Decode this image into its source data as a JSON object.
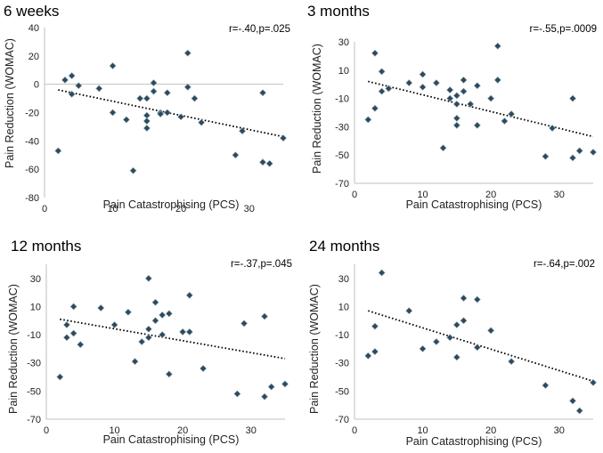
{
  "chart_data": [
    {
      "type": "scatter",
      "title": "6 weeks",
      "stat": "r=-.40,p=.025",
      "xlabel": "Pain Catastrophising (PCS)",
      "ylabel": "Pain Reduction (WOMAC)",
      "xlim": [
        0,
        35
      ],
      "ylim": [
        -80,
        40
      ],
      "xticks": [
        0,
        10,
        20,
        30
      ],
      "yticks": [
        40,
        20,
        0,
        -20,
        -40,
        -60,
        -80
      ],
      "trend": {
        "x": [
          2,
          35
        ],
        "y": [
          -4,
          -37
        ]
      },
      "points": [
        [
          2,
          -47
        ],
        [
          3,
          3
        ],
        [
          4,
          6
        ],
        [
          4,
          -7
        ],
        [
          5,
          -1
        ],
        [
          8,
          -3
        ],
        [
          10,
          13
        ],
        [
          10,
          -20
        ],
        [
          12,
          -25
        ],
        [
          13,
          -61
        ],
        [
          14,
          -10
        ],
        [
          15,
          -10
        ],
        [
          15,
          -22
        ],
        [
          15,
          -26
        ],
        [
          15,
          -31
        ],
        [
          16,
          -5
        ],
        [
          16,
          1
        ],
        [
          17,
          -20
        ],
        [
          17,
          -21
        ],
        [
          18,
          -20
        ],
        [
          18,
          -6
        ],
        [
          20,
          -23
        ],
        [
          21,
          22
        ],
        [
          21,
          -2
        ],
        [
          22,
          -10
        ],
        [
          23,
          -27
        ],
        [
          28,
          -50
        ],
        [
          29,
          -33
        ],
        [
          32,
          -6
        ],
        [
          32,
          -55
        ],
        [
          33,
          -56
        ],
        [
          35,
          -38
        ]
      ]
    },
    {
      "type": "scatter",
      "title": "3 months",
      "stat": "r=-.55,p=.0009",
      "xlabel": "Pain Catastrophising (PCS)",
      "ylabel": "Pain Reduction (WOMAC)",
      "xlim": [
        0,
        35
      ],
      "ylim": [
        -70,
        30
      ],
      "xticks": [
        0,
        10,
        20,
        30
      ],
      "yticks": [
        30,
        10,
        -10,
        -30,
        -50,
        -70
      ],
      "trend": {
        "x": [
          2,
          35
        ],
        "y": [
          2,
          -37
        ]
      },
      "points": [
        [
          2,
          -25
        ],
        [
          3,
          22
        ],
        [
          3,
          -17
        ],
        [
          4,
          9
        ],
        [
          4,
          -5
        ],
        [
          5,
          -3
        ],
        [
          8,
          1
        ],
        [
          10,
          7
        ],
        [
          10,
          -2
        ],
        [
          12,
          1
        ],
        [
          13,
          -45
        ],
        [
          14,
          -4
        ],
        [
          14,
          -10
        ],
        [
          15,
          -8
        ],
        [
          15,
          -14
        ],
        [
          15,
          -24
        ],
        [
          15,
          -29
        ],
        [
          16,
          -5
        ],
        [
          16,
          3
        ],
        [
          17,
          -14
        ],
        [
          18,
          -1
        ],
        [
          18,
          -29
        ],
        [
          20,
          -10
        ],
        [
          21,
          27
        ],
        [
          21,
          3
        ],
        [
          22,
          -26
        ],
        [
          23,
          -21
        ],
        [
          28,
          -51
        ],
        [
          29,
          -31
        ],
        [
          32,
          -10
        ],
        [
          32,
          -52
        ],
        [
          33,
          -47
        ],
        [
          35,
          -48
        ]
      ]
    },
    {
      "type": "scatter",
      "title": "12 months",
      "stat": "r=-.37,p=.045",
      "xlabel": "Pain Catastrophising (PCS)",
      "ylabel": "Pain Reduction (WOMAC)",
      "xlim": [
        0,
        35
      ],
      "ylim": [
        -70,
        40
      ],
      "xticks": [
        0,
        10,
        20,
        30
      ],
      "yticks": [
        30,
        10,
        -10,
        -30,
        -50,
        -70
      ],
      "trend": {
        "x": [
          2,
          35
        ],
        "y": [
          1,
          -27
        ]
      },
      "points": [
        [
          2,
          -40
        ],
        [
          3,
          -12
        ],
        [
          3,
          -3
        ],
        [
          4,
          -9
        ],
        [
          4,
          10
        ],
        [
          5,
          -17
        ],
        [
          8,
          9
        ],
        [
          10,
          -3
        ],
        [
          12,
          6
        ],
        [
          13,
          -29
        ],
        [
          14,
          -15
        ],
        [
          15,
          30
        ],
        [
          15,
          -12
        ],
        [
          15,
          -6
        ],
        [
          16,
          0
        ],
        [
          16,
          13
        ],
        [
          17,
          4
        ],
        [
          17,
          -10
        ],
        [
          18,
          -38
        ],
        [
          18,
          5
        ],
        [
          20,
          -8
        ],
        [
          21,
          18
        ],
        [
          21,
          -8
        ],
        [
          23,
          -34
        ],
        [
          28,
          -52
        ],
        [
          29,
          -2
        ],
        [
          32,
          3
        ],
        [
          32,
          -54
        ],
        [
          33,
          -47
        ],
        [
          35,
          -45
        ]
      ]
    },
    {
      "type": "scatter",
      "title": "24 months",
      "stat": "r=-.64,p=.002",
      "xlabel": "Pain Catastrophising (PCS)",
      "ylabel": "Pain Reduction (WOMAC)",
      "xlim": [
        0,
        35
      ],
      "ylim": [
        -70,
        40
      ],
      "xticks": [
        0,
        10,
        20,
        30
      ],
      "yticks": [
        30,
        10,
        -10,
        -30,
        -50,
        -70
      ],
      "trend": {
        "x": [
          2,
          35
        ],
        "y": [
          7,
          -43
        ]
      },
      "points": [
        [
          2,
          -25
        ],
        [
          3,
          -22
        ],
        [
          3,
          -4
        ],
        [
          4,
          34
        ],
        [
          8,
          7
        ],
        [
          10,
          -20
        ],
        [
          12,
          -15
        ],
        [
          14,
          -12
        ],
        [
          15,
          -26
        ],
        [
          15,
          -3
        ],
        [
          16,
          0
        ],
        [
          16,
          16
        ],
        [
          18,
          -19
        ],
        [
          18,
          15
        ],
        [
          20,
          -7
        ],
        [
          23,
          -29
        ],
        [
          28,
          -46
        ],
        [
          32,
          -57
        ],
        [
          33,
          -64
        ],
        [
          35,
          -44
        ]
      ]
    }
  ],
  "colors": {
    "marker_fill": "#2c4a5c",
    "marker_stroke": "#9fb3c0",
    "trend": "#000000",
    "axis": "#bfbfbf"
  }
}
